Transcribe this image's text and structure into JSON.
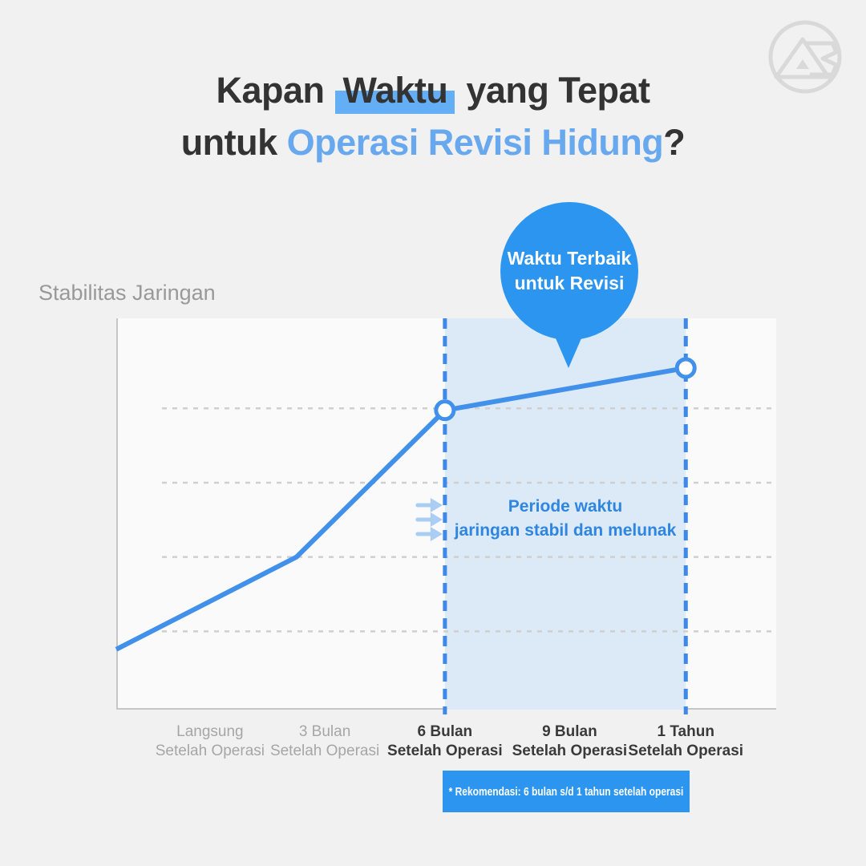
{
  "page": {
    "background": "#f1f1f2"
  },
  "logo": {
    "monogram": "AB"
  },
  "title": {
    "line1_prefix": "Kapan ",
    "line1_highlight": "Waktu",
    "line1_suffix": " yang Tepat",
    "line2_prefix": "untuk ",
    "line2_accent": "Operasi Revisi Hidung",
    "line2_suffix": "?"
  },
  "chart_data": {
    "type": "line",
    "ylabel": "Stabilitas Jaringan",
    "x_categories": [
      {
        "line1": "Langsung",
        "line2": "Setelah Operasi",
        "emphasis": false,
        "tick_fraction": 0.142
      },
      {
        "line1": "3 Bulan",
        "line2": "Setelah Operasi",
        "emphasis": false,
        "tick_fraction": 0.316
      },
      {
        "line1": "6 Bulan",
        "line2": "Setelah Operasi",
        "emphasis": true,
        "tick_fraction": 0.498
      },
      {
        "line1": "9 Bulan",
        "line2": "Setelah Operasi",
        "emphasis": true,
        "tick_fraction": 0.687
      },
      {
        "line1": "1 Tahun",
        "line2": "Setelah Operasi",
        "emphasis": true,
        "tick_fraction": 0.863
      }
    ],
    "series": [
      {
        "name": "Stabilitas Jaringan",
        "points": [
          {
            "x": 0.0,
            "stability_pct": 15.4,
            "marker": false
          },
          {
            "x": 0.273,
            "stability_pct": 39.0,
            "marker": false
          },
          {
            "x": 0.498,
            "stability_pct": 76.5,
            "marker": true
          },
          {
            "x": 0.863,
            "stability_pct": 87.3,
            "marker": true
          }
        ]
      }
    ],
    "y_range_pct": [
      0,
      100
    ],
    "gridline_values_pct": [
      20,
      39,
      58,
      77
    ],
    "grid": "dashed-horizontal",
    "legend": "none",
    "highlight_region": {
      "from_x": 0.498,
      "to_x": 0.863,
      "label_line1": "Periode waktu",
      "label_line2": "jaringan stabil dan melunak"
    },
    "annotation_bubble": {
      "line1": "Waktu Terbaik",
      "line2": "untuk Revisi"
    },
    "footnote": "* Rekomendasi: 6 bulan s/d 1 tahun setelah operasi"
  },
  "colors": {
    "accent": "#2b95ef",
    "line": "#4190ea",
    "dashed_line": "#3d88e8",
    "region_fill": "#dce9f7",
    "region_text": "#2e86e0",
    "arrow": "#a9cdf3",
    "gridline": "#cfcfcf",
    "axis": "#c6c6c6",
    "title_dark": "#333333",
    "title_blue": "#68a8ee",
    "highlight_bg": "#64aef5",
    "muted_label": "#a6a6a6",
    "dark_label": "#3a3a3a",
    "ylabel_gray": "#999999",
    "logo_gray": "#d9d9d9"
  }
}
